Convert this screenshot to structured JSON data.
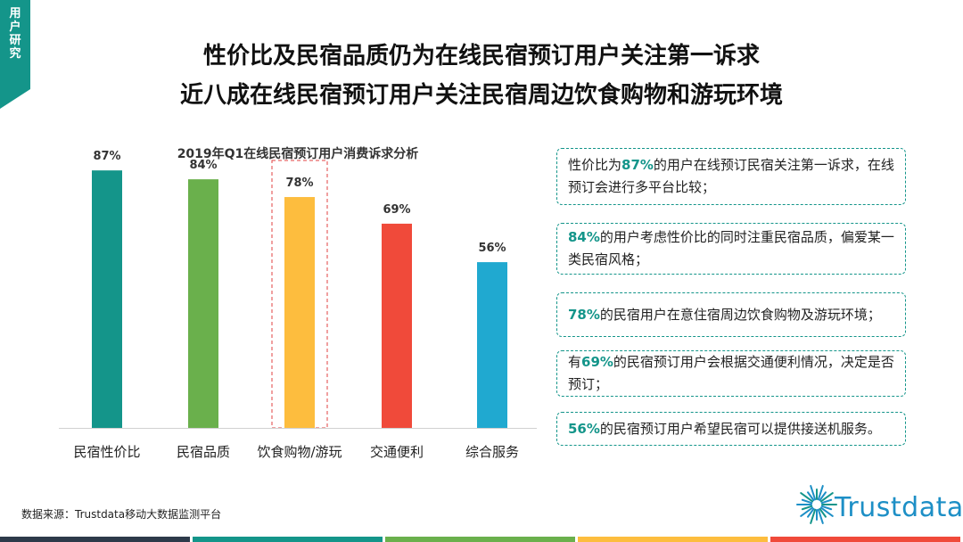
{
  "corner_tag": "用户研究",
  "title": {
    "line1": "性价比及民宿品质仍为在线民宿预订用户关注第一诉求",
    "line2": "近八成在线民宿预订用户关注民宿周边饮食购物和游玩环境"
  },
  "chart_data": {
    "type": "bar",
    "title": "2019年Q1在线民宿预订用户消费诉求分析",
    "categories": [
      "民宿性价比",
      "民宿品质",
      "饮食购物/游玩",
      "交通便利",
      "综合服务"
    ],
    "values": [
      87,
      84,
      78,
      69,
      56
    ],
    "value_labels": [
      "87%",
      "84%",
      "78%",
      "69%",
      "56%"
    ],
    "colors": [
      "#14958a",
      "#6ab04c",
      "#fdbd3e",
      "#f04a3a",
      "#20a9d0"
    ],
    "highlight_index": 2,
    "highlight_color": "#e04040",
    "ylim": [
      0,
      100
    ],
    "grid": false
  },
  "notes": [
    {
      "before": "性价比为",
      "pct": "87%",
      "after": "的用户在线预订民宿关注第一诉求，在线预订会进行多平台比较；"
    },
    {
      "before": "",
      "pct": "84%",
      "after": "的用户考虑性价比的同时注重民宿品质，偏爱某一类民宿风格；"
    },
    {
      "before": "",
      "pct": "78%",
      "after": "的民宿用户在意住宿周边饮食购物及游玩环境；"
    },
    {
      "before": "有",
      "pct": "69%",
      "after": "的民宿预订用户会根据交通便利情况，决定是否预订；"
    },
    {
      "before": "",
      "pct": "56%",
      "after": "的民宿预订用户希望民宿可以提供接送机服务。"
    }
  ],
  "source": "数据来源：Trustdata移动大数据监测平台",
  "logo": {
    "text": "Trustdata",
    "color": "#1d8fc6"
  },
  "footer_colors": [
    "#2d3a4a",
    "#14958a",
    "#6ab04c",
    "#fdbd3e",
    "#f04a3a"
  ]
}
